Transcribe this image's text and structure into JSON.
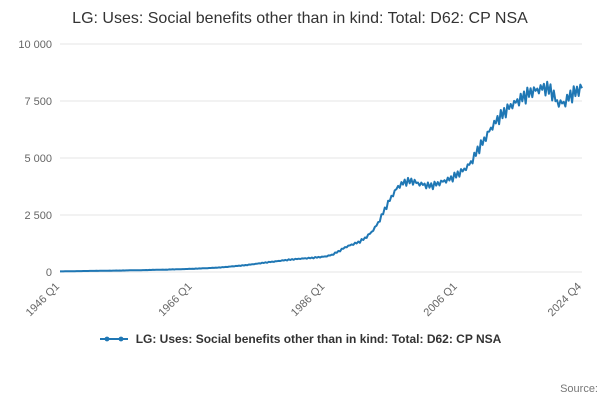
{
  "source_label": "Source:",
  "chart_data": {
    "type": "line",
    "title": "LG: Uses: Social benefits other than in kind: Total: D62: CP NSA",
    "legend": "LG: Uses: Social benefits other than in kind: Total: D62: CP NSA",
    "frequency": "quarterly",
    "start_year": 1946,
    "total_quarters": 316,
    "x_start_label": "1946 Q1",
    "x_end_label": "2024 Q4",
    "ylim": [
      0,
      10000
    ],
    "grid": true,
    "legend_position": "bottom",
    "line_color": "#1f77b4",
    "grid_color": "#e6e6e6",
    "axis_label_color": "#666666",
    "title_color": "#333333",
    "y_ticks": [
      {
        "value": 0,
        "label": "0"
      },
      {
        "value": 2500,
        "label": "2 500"
      },
      {
        "value": 5000,
        "label": "5 000"
      },
      {
        "value": 7500,
        "label": "7 500"
      },
      {
        "value": 10000,
        "label": "10 000"
      }
    ],
    "x_ticks": [
      {
        "label": "1946 Q1",
        "quarter_index": 0
      },
      {
        "label": "1966 Q1",
        "quarter_index": 80
      },
      {
        "label": "1986 Q1",
        "quarter_index": 160
      },
      {
        "label": "2006 Q1",
        "quarter_index": 240
      },
      {
        "label": "2024 Q4",
        "quarter_index": 315
      }
    ],
    "seasonal_pattern": [
      0.5,
      -1.0,
      0.75,
      -0.4
    ],
    "seasonal_amplitude": 0.035,
    "noise_amplitude": 0.012,
    "anchors": [
      [
        1946,
        25
      ],
      [
        1950,
        45
      ],
      [
        1954,
        60
      ],
      [
        1958,
        80
      ],
      [
        1962,
        105
      ],
      [
        1966,
        140
      ],
      [
        1970,
        195
      ],
      [
        1974,
        300
      ],
      [
        1978,
        450
      ],
      [
        1980,
        520
      ],
      [
        1982,
        580
      ],
      [
        1984,
        620
      ],
      [
        1986,
        680
      ],
      [
        1987,
        750
      ],
      [
        1988,
        900
      ],
      [
        1989,
        1080
      ],
      [
        1990,
        1200
      ],
      [
        1991,
        1300
      ],
      [
        1992,
        1480
      ],
      [
        1993,
        1750
      ],
      [
        1994,
        2150
      ],
      [
        1995,
        2750
      ],
      [
        1996,
        3300
      ],
      [
        1997,
        3750
      ],
      [
        1998,
        3950
      ],
      [
        1999,
        4000
      ],
      [
        2000,
        3900
      ],
      [
        2001,
        3820
      ],
      [
        2002,
        3780
      ],
      [
        2003,
        3880
      ],
      [
        2004,
        4000
      ],
      [
        2005,
        4100
      ],
      [
        2006,
        4300
      ],
      [
        2007,
        4500
      ],
      [
        2008,
        4800
      ],
      [
        2009,
        5350
      ],
      [
        2010,
        5800
      ],
      [
        2011,
        6300
      ],
      [
        2012,
        6700
      ],
      [
        2013,
        7000
      ],
      [
        2014,
        7300
      ],
      [
        2015,
        7500
      ],
      [
        2016,
        7700
      ],
      [
        2017,
        7900
      ],
      [
        2018,
        8000
      ],
      [
        2019,
        8100
      ],
      [
        2020,
        8000
      ],
      [
        2021,
        7450
      ],
      [
        2022,
        7400
      ],
      [
        2023,
        7750
      ],
      [
        2025,
        8150
      ]
    ]
  }
}
